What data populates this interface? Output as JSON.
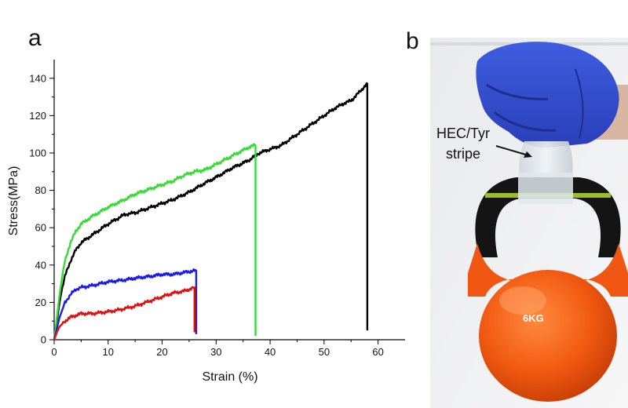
{
  "panels": {
    "a": "a",
    "b": "b"
  },
  "chart_data": {
    "type": "line",
    "title": "",
    "xlabel": "Strain (%)",
    "ylabel": "Stress(MPa)",
    "xlim": [
      0,
      65
    ],
    "ylim": [
      0,
      150
    ],
    "xticks": [
      0,
      10,
      20,
      30,
      40,
      50,
      60
    ],
    "yticks": [
      0,
      20,
      40,
      60,
      80,
      100,
      120,
      140
    ],
    "grid": false,
    "legend": "none",
    "series": [
      {
        "name": "black",
        "color": "#000000",
        "x": [
          0,
          0.5,
          1,
          1.5,
          2,
          3,
          4,
          5,
          7,
          10,
          13,
          15,
          18,
          20,
          22,
          25,
          28,
          30,
          33,
          36,
          38,
          40,
          42,
          45,
          48,
          50,
          52,
          54,
          55,
          56,
          57,
          57.8,
          58,
          58
        ],
        "y": [
          0,
          10,
          20,
          28,
          34,
          42,
          48,
          52,
          56,
          62,
          67,
          68,
          71,
          73,
          75,
          79,
          84,
          87,
          92,
          96,
          100,
          102,
          104,
          110,
          116,
          120,
          124,
          127,
          128,
          131,
          134,
          137,
          137,
          5
        ]
      },
      {
        "name": "green",
        "color": "#33dd33",
        "x": [
          0,
          0.5,
          1,
          1.5,
          2,
          3,
          4,
          5,
          7,
          10,
          13,
          15,
          18,
          20,
          22,
          24,
          26,
          28,
          30,
          32,
          34,
          36,
          37,
          37.3,
          37.3
        ],
        "y": [
          0,
          12,
          24,
          34,
          42,
          52,
          58,
          62,
          66,
          71,
          75,
          78,
          81,
          83,
          85,
          88,
          90,
          91,
          94,
          97,
          100,
          103,
          104,
          104,
          2
        ]
      },
      {
        "name": "blue",
        "color": "#1a1aee",
        "x": [
          0,
          0.5,
          1,
          2,
          3,
          4,
          5,
          7,
          10,
          13,
          15,
          18,
          20,
          22,
          24,
          26,
          26.3,
          26.3
        ],
        "y": [
          0,
          6,
          12,
          20,
          24,
          27,
          28,
          29,
          31,
          32,
          33,
          34,
          35,
          35,
          36,
          37,
          37,
          3
        ]
      },
      {
        "name": "red",
        "color": "#e01010",
        "x": [
          0,
          0.5,
          1,
          2,
          3,
          5,
          7,
          10,
          12,
          15,
          17,
          20,
          22,
          24,
          25,
          26,
          26,
          26
        ],
        "y": [
          0,
          4,
          7,
          10,
          12,
          14,
          14,
          15,
          16,
          18,
          20,
          23,
          25,
          26,
          27,
          28,
          28,
          4
        ]
      }
    ]
  },
  "photo": {
    "annotation_line1": "HEC/Tyr",
    "annotation_line2": "stripe",
    "weight_label": "6KG"
  }
}
